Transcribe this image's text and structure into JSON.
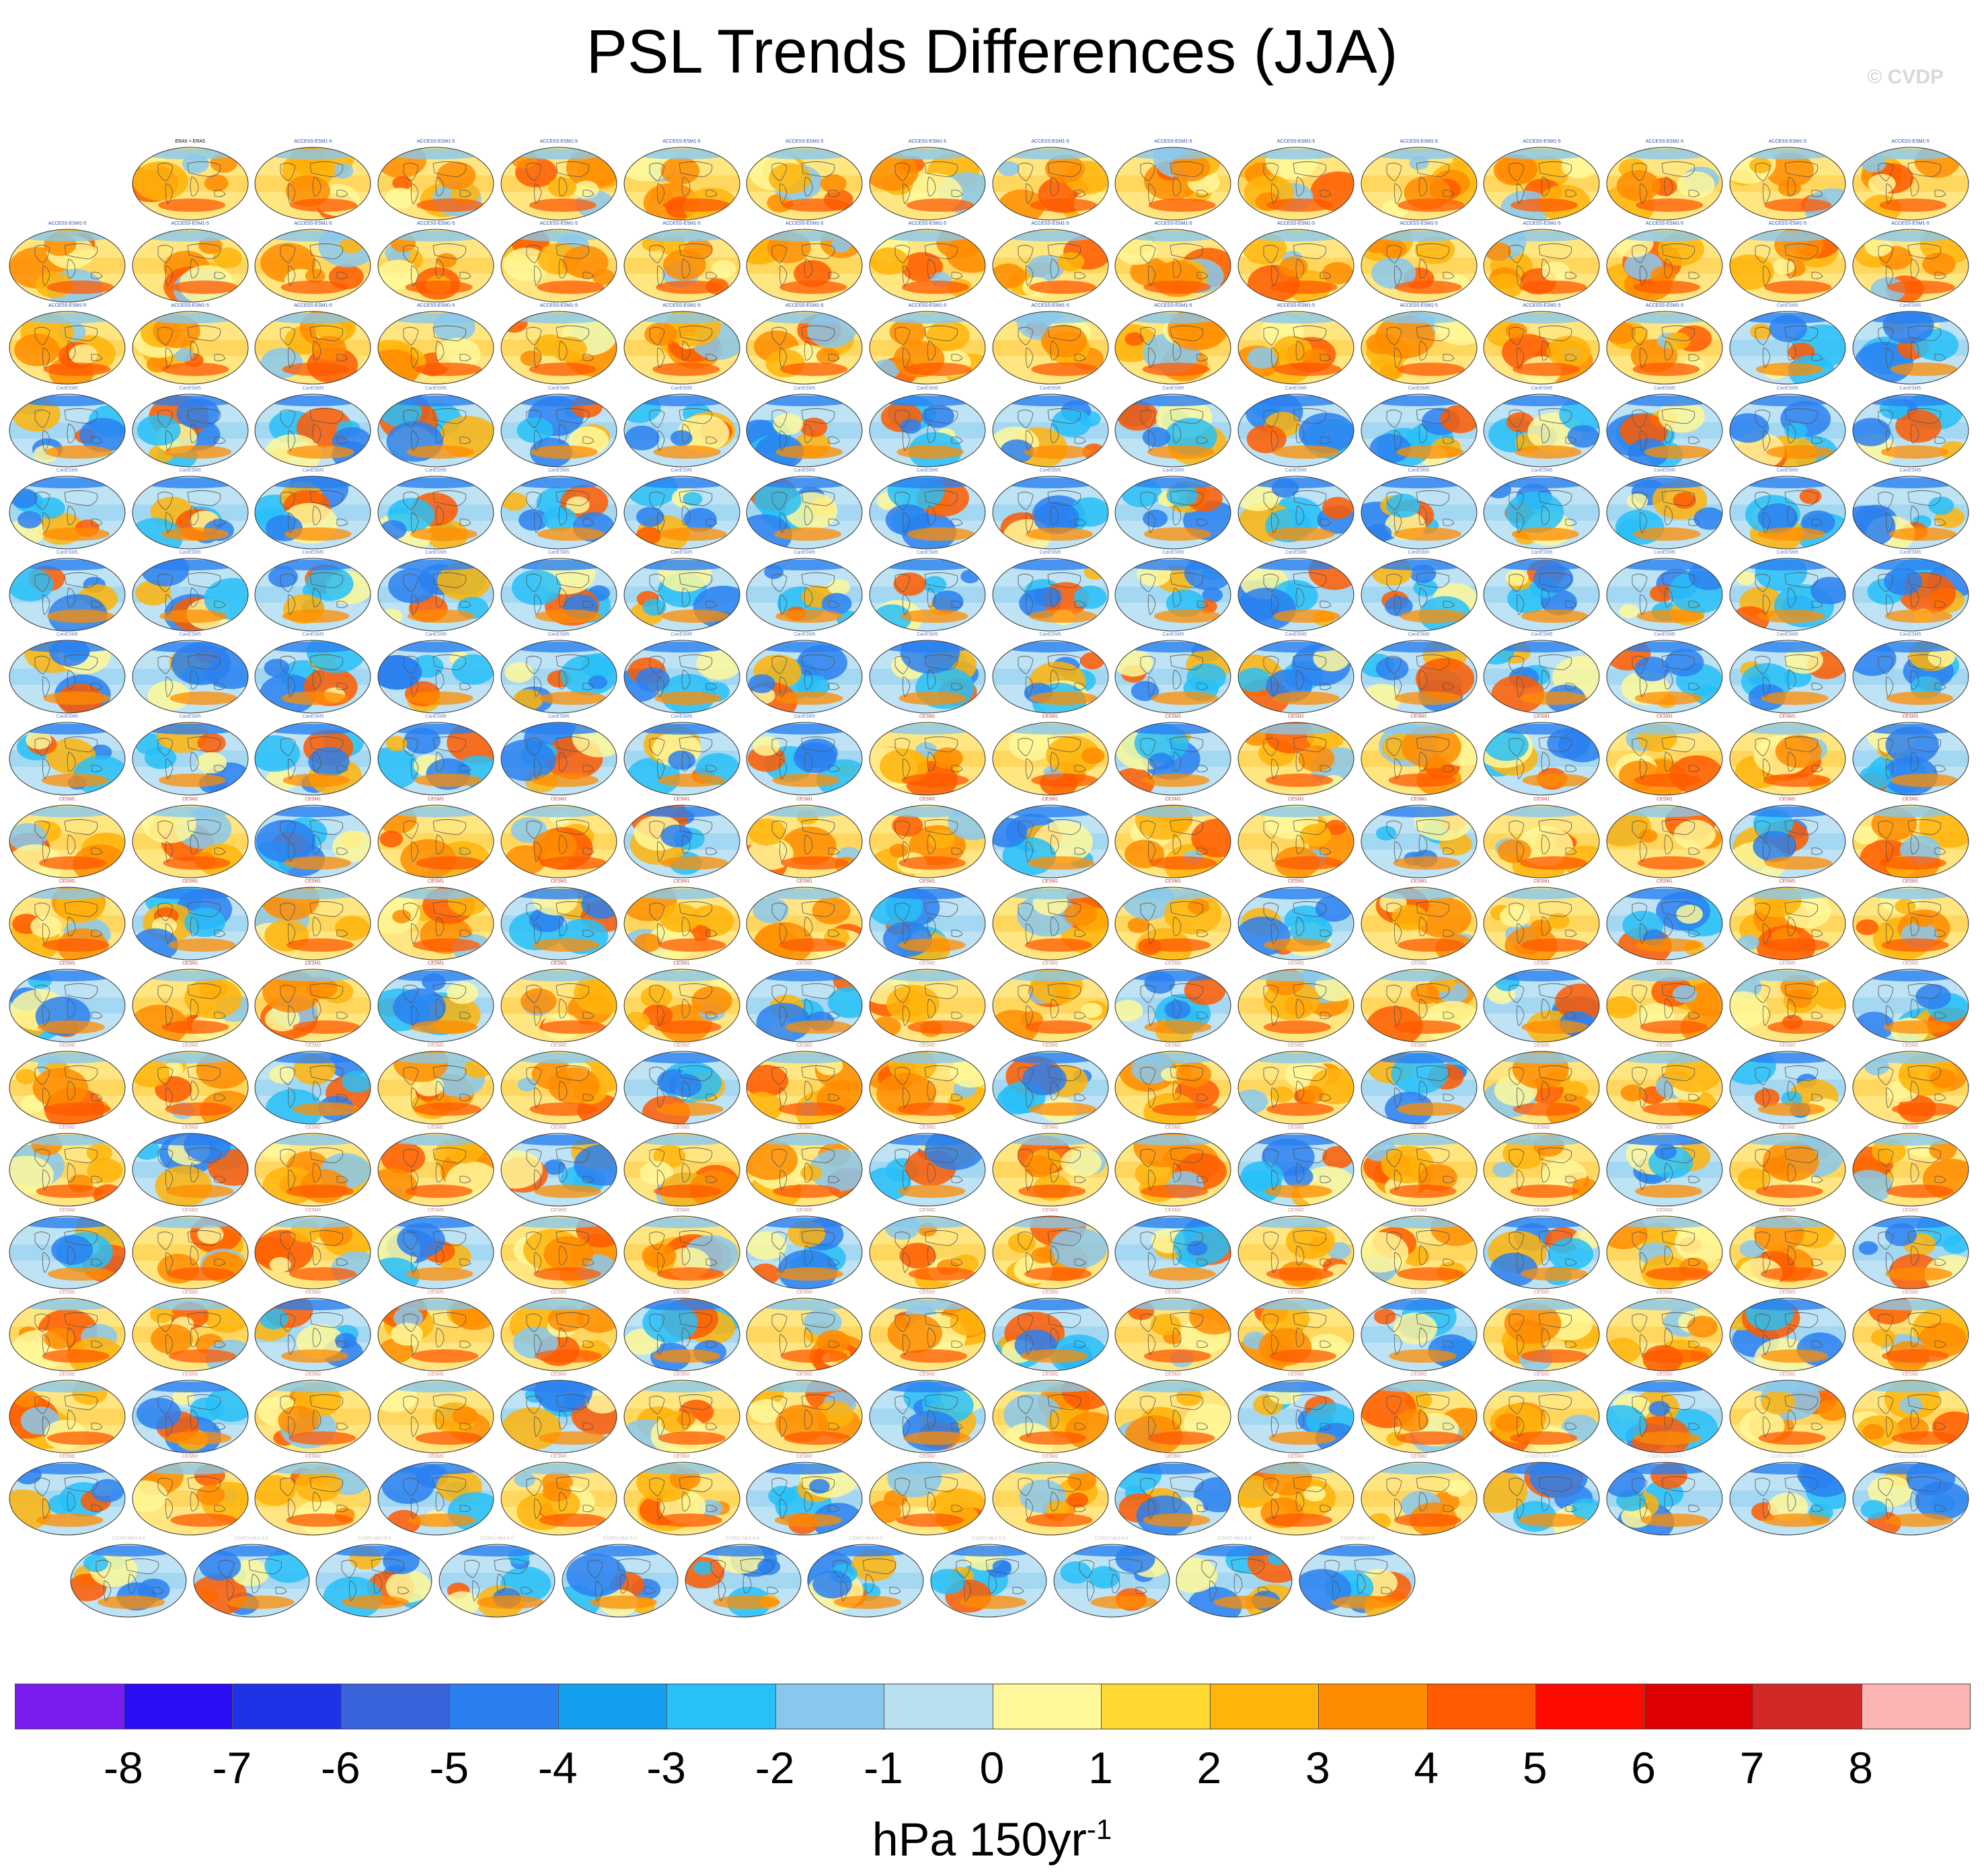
{
  "title": "PSL Trends Differences (JJA)",
  "watermark": "© CVDP",
  "colorbar": {
    "colors": [
      "#7a1cf0",
      "#2a0cf5",
      "#1e32e6",
      "#3a64dc",
      "#2a80f0",
      "#14a0f0",
      "#28c0f8",
      "#88c8ee",
      "#b8e0f0",
      "#fff89a",
      "#ffd830",
      "#ffb40a",
      "#ff8c00",
      "#ff5a00",
      "#ff0a00",
      "#dc0000",
      "#d22828",
      "#ffb4b4"
    ],
    "tick_labels": [
      "-8",
      "-7",
      "-6",
      "-5",
      "-4",
      "-3",
      "-2",
      "-1",
      "0",
      "1",
      "2",
      "3",
      "4",
      "5",
      "6",
      "7",
      "8"
    ]
  },
  "units": {
    "text": "hPa 150yr",
    "superscript": "-1"
  },
  "panels": {
    "count": 282,
    "first_label": "ERA5 > ERA5",
    "label_groups": [
      {
        "prefix": "ACCESS-ESM1-5",
        "color": "#2a4aa8"
      },
      {
        "prefix": "CanESM5",
        "color": "#5a7ac8"
      },
      {
        "prefix": "CESM1",
        "color": "#c04040"
      },
      {
        "prefix": "CESM2",
        "color": "#d08080"
      },
      {
        "prefix": "CSIRO-Mk3-6-0",
        "color": "#c8c8c8"
      }
    ]
  }
}
